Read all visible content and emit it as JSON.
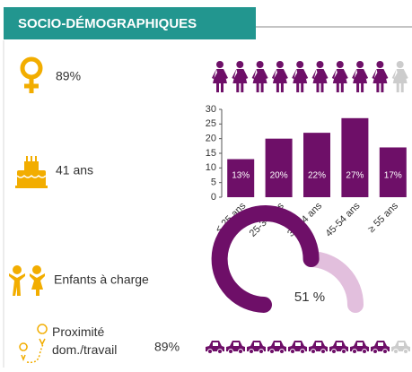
{
  "header": {
    "title": "SOCIO-DÉMOGRAPHIQUES"
  },
  "women": {
    "value": 89,
    "value_label": "89%"
  },
  "age": {
    "label": "41 ans"
  },
  "chart_data": {
    "type": "bar",
    "categories": [
      "< 25 ans",
      "25-34 ans",
      "35-44 ans",
      "45-54 ans",
      "≥ 55 ans"
    ],
    "values": [
      13,
      20,
      22,
      27,
      17
    ],
    "value_labels": [
      "13%",
      "20%",
      "22%",
      "27%",
      "17%"
    ],
    "color": "#6e0f68",
    "ylim": [
      0,
      30
    ],
    "yticks": [
      0,
      5,
      10,
      15,
      20,
      25,
      30
    ]
  },
  "children": {
    "label": "Enfants à charge",
    "value": 51,
    "value_label": "51 %"
  },
  "commute": {
    "label": "Proximité dom./travail",
    "value": 89,
    "value_label": "89%"
  }
}
